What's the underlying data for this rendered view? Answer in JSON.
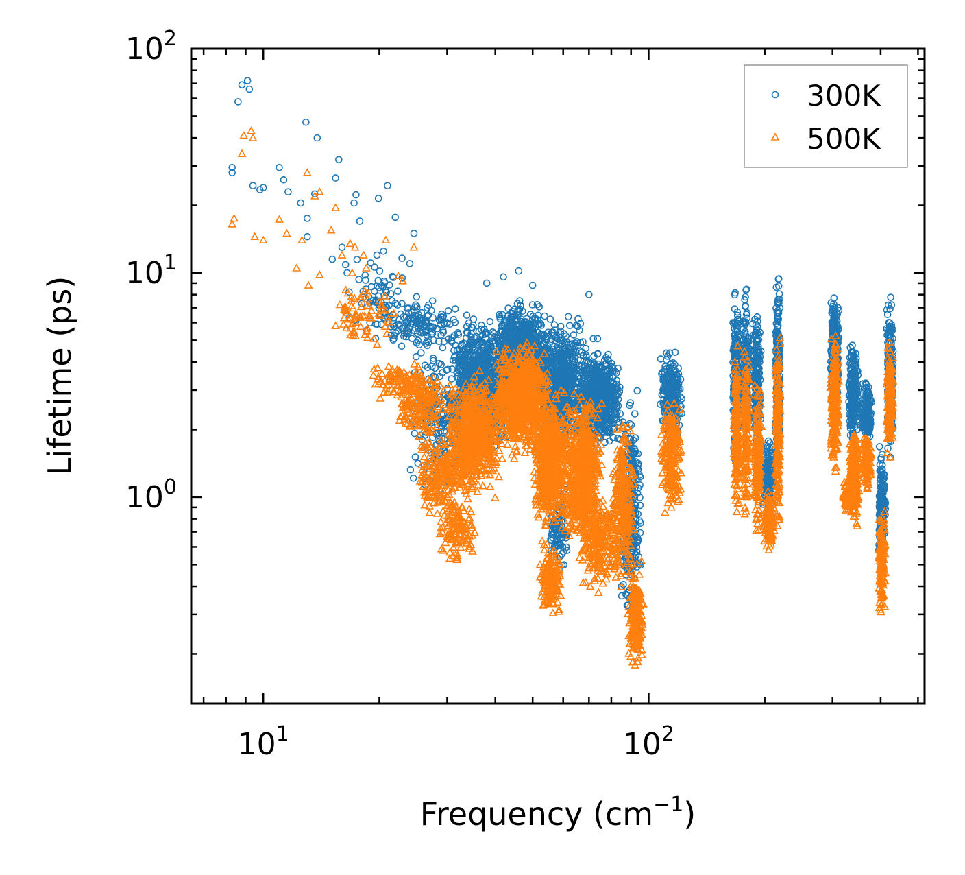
{
  "chart_data": {
    "type": "scatter",
    "xlabel": "Frequency (cm",
    "xlabel_sup": "−1",
    "xlabel_end": ")",
    "ylabel": "Lifetime (ps)",
    "xscale": "log",
    "yscale": "log",
    "xlim": [
      6.5,
      520
    ],
    "ylim": [
      0.12,
      100
    ],
    "x_ticks": [
      {
        "base": "10",
        "exp": "1",
        "value": 10
      },
      {
        "base": "10",
        "exp": "2",
        "value": 100
      }
    ],
    "y_ticks": [
      {
        "base": "10",
        "exp": "0",
        "value": 1
      },
      {
        "base": "10",
        "exp": "1",
        "value": 10
      },
      {
        "base": "10",
        "exp": "2",
        "value": 100
      }
    ],
    "legend_position": "top-right",
    "colors": {
      "s300": "#1f77b4",
      "s500": "#ff7f0e"
    },
    "series": [
      {
        "name": "300K",
        "marker": "circle",
        "color": "#1f77b4",
        "points": [
          [
            8.3,
            28
          ],
          [
            8.3,
            29.5
          ],
          [
            8.6,
            58
          ],
          [
            8.8,
            69
          ],
          [
            9.1,
            72
          ],
          [
            9.2,
            66
          ],
          [
            9.4,
            24.5
          ],
          [
            9.8,
            23.5
          ],
          [
            10,
            24
          ],
          [
            11,
            29.5
          ],
          [
            11.3,
            26
          ],
          [
            11.6,
            23
          ],
          [
            12.5,
            20.5
          ],
          [
            12.9,
            47
          ],
          [
            13,
            17.5
          ],
          [
            13,
            14.5
          ],
          [
            13.6,
            22.5
          ],
          [
            13.8,
            40
          ],
          [
            15.1,
            11.5
          ],
          [
            15.4,
            26.5
          ],
          [
            15.7,
            32
          ],
          [
            16,
            13
          ],
          [
            16.5,
            10
          ],
          [
            17.2,
            20.5
          ],
          [
            17.4,
            22.3
          ],
          [
            17.8,
            17
          ],
          [
            19.9,
            21.5
          ],
          [
            21,
            24.5
          ],
          [
            20.5,
            12.5
          ],
          [
            22,
            17.7
          ],
          [
            24.6,
            15
          ],
          [
            24,
            11
          ],
          [
            27.5,
            7.5
          ],
          [
            30,
            6
          ],
          [
            38,
            9
          ],
          [
            42,
            9.6
          ],
          [
            46,
            10.2
          ],
          [
            50,
            8.8
          ],
          [
            70,
            8
          ]
        ],
        "clusters": [
          {
            "x": [
              16,
              24
            ],
            "y": [
              4.2,
              14
            ],
            "n": 70
          },
          {
            "x": [
              20,
              32
            ],
            "y": [
              4.5,
              8
            ],
            "n": 120
          },
          {
            "x": [
              24,
              34
            ],
            "y": [
              0.8,
              6
            ],
            "n": 200
          },
          {
            "x": [
              30,
              45
            ],
            "y": [
              1.5,
              7
            ],
            "n": 900
          },
          {
            "x": [
              40,
              55
            ],
            "y": [
              2.5,
              8
            ],
            "n": 700
          },
          {
            "x": [
              50,
              70
            ],
            "y": [
              1.5,
              7
            ],
            "n": 700
          },
          {
            "x": [
              65,
              85
            ],
            "y": [
              1.5,
              5.2
            ],
            "n": 600
          },
          {
            "x": [
              55,
              62
            ],
            "y": [
              0.4,
              1.2
            ],
            "n": 90
          },
          {
            "x": [
              84,
              96
            ],
            "y": [
              0.25,
              3.2
            ],
            "n": 300
          },
          {
            "x": [
              107,
              123
            ],
            "y": [
              1.6,
              5
            ],
            "n": 220
          },
          {
            "x": [
              165,
              172
            ],
            "y": [
              1.1,
              10.5
            ],
            "n": 180
          },
          {
            "x": [
              174,
              183
            ],
            "y": [
              1.4,
              9.5
            ],
            "n": 180
          },
          {
            "x": [
              186,
              196
            ],
            "y": [
              1.3,
              9
            ],
            "n": 180
          },
          {
            "x": [
              197,
              212
            ],
            "y": [
              0.8,
              2
            ],
            "n": 150
          },
          {
            "x": [
              213,
              220
            ],
            "y": [
              1.1,
              11.5
            ],
            "n": 200
          },
          {
            "x": [
              296,
              312
            ],
            "y": [
              2.2,
              9.6
            ],
            "n": 260
          },
          {
            "x": [
              330,
              352
            ],
            "y": [
              1.5,
              5.3
            ],
            "n": 220
          },
          {
            "x": [
              357,
              380
            ],
            "y": [
              1.6,
              3.5
            ],
            "n": 160
          },
          {
            "x": [
              395,
              412
            ],
            "y": [
              0.45,
              1.8
            ],
            "n": 180
          },
          {
            "x": [
              414,
              432
            ],
            "y": [
              1.4,
              8.6
            ],
            "n": 220
          }
        ]
      },
      {
        "name": "500K",
        "marker": "triangle",
        "color": "#ff7f0e",
        "points": [
          [
            8.3,
            16.5
          ],
          [
            8.4,
            17.5
          ],
          [
            8.8,
            34
          ],
          [
            8.9,
            41
          ],
          [
            9.3,
            43
          ],
          [
            9.4,
            40
          ],
          [
            9.5,
            14.5
          ],
          [
            10,
            14
          ],
          [
            11,
            17.3
          ],
          [
            11.5,
            15
          ],
          [
            12.6,
            14
          ],
          [
            13,
            28
          ],
          [
            13.6,
            22
          ],
          [
            14,
            23
          ],
          [
            15,
            15.5
          ],
          [
            15.4,
            19.5
          ],
          [
            16,
            12
          ],
          [
            16.8,
            13.5
          ],
          [
            17,
            10
          ],
          [
            17.3,
            13
          ],
          [
            18.2,
            12
          ],
          [
            18.5,
            10.5
          ],
          [
            20.8,
            14
          ],
          [
            22.4,
            9.7
          ],
          [
            23,
            9.2
          ],
          [
            24.6,
            13
          ],
          [
            14,
            9.8
          ],
          [
            12.2,
            10.5
          ],
          [
            13.1,
            8.8
          ]
        ],
        "clusters": [
          {
            "x": [
              15,
              22
            ],
            "y": [
              4.5,
              9.5
            ],
            "n": 70
          },
          {
            "x": [
              19,
              27
            ],
            "y": [
              2.3,
              4.5
            ],
            "n": 90
          },
          {
            "x": [
              22,
              30
            ],
            "y": [
              1.6,
              4.2
            ],
            "n": 160
          },
          {
            "x": [
              25,
              33
            ],
            "y": [
              0.75,
              2.2
            ],
            "n": 200
          },
          {
            "x": [
              28,
              36
            ],
            "y": [
              0.45,
              1.2
            ],
            "n": 120
          },
          {
            "x": [
              30,
              42
            ],
            "y": [
              0.9,
              4
            ],
            "n": 700
          },
          {
            "x": [
              40,
              55
            ],
            "y": [
              1.4,
              5.5
            ],
            "n": 800
          },
          {
            "x": [
              50,
              62
            ],
            "y": [
              0.6,
              3.5
            ],
            "n": 600
          },
          {
            "x": [
              52,
              60
            ],
            "y": [
              0.28,
              0.65
            ],
            "n": 150
          },
          {
            "x": [
              60,
              76
            ],
            "y": [
              0.5,
              3.2
            ],
            "n": 600
          },
          {
            "x": [
              66,
              84
            ],
            "y": [
              0.35,
              1.2
            ],
            "n": 250
          },
          {
            "x": [
              80,
              92
            ],
            "y": [
              0.35,
              2.7
            ],
            "n": 250
          },
          {
            "x": [
              88,
              97
            ],
            "y": [
              0.15,
              0.55
            ],
            "n": 200
          },
          {
            "x": [
              107,
              123
            ],
            "y": [
              0.8,
              3
            ],
            "n": 220
          },
          {
            "x": [
              166,
              172
            ],
            "y": [
              0.65,
              5.8
            ],
            "n": 160
          },
          {
            "x": [
              175,
              183
            ],
            "y": [
              0.65,
              6.2
            ],
            "n": 160
          },
          {
            "x": [
              187,
              197
            ],
            "y": [
              0.55,
              4.2
            ],
            "n": 160
          },
          {
            "x": [
              198,
              213
            ],
            "y": [
              0.55,
              1.1
            ],
            "n": 130
          },
          {
            "x": [
              213,
              220
            ],
            "y": [
              0.6,
              6.5
            ],
            "n": 180
          },
          {
            "x": [
              296,
              312
            ],
            "y": [
              1.2,
              5.8
            ],
            "n": 220
          },
          {
            "x": [
              318,
              335
            ],
            "y": [
              0.8,
              1.3
            ],
            "n": 50
          },
          {
            "x": [
              330,
              352
            ],
            "y": [
              0.7,
              2.3
            ],
            "n": 220
          },
          {
            "x": [
              357,
              380
            ],
            "y": [
              1,
              2.2
            ],
            "n": 140
          },
          {
            "x": [
              395,
              412
            ],
            "y": [
              0.27,
              1
            ],
            "n": 170
          },
          {
            "x": [
              414,
              432
            ],
            "y": [
              1.3,
              5.5
            ],
            "n": 200
          }
        ]
      }
    ]
  }
}
